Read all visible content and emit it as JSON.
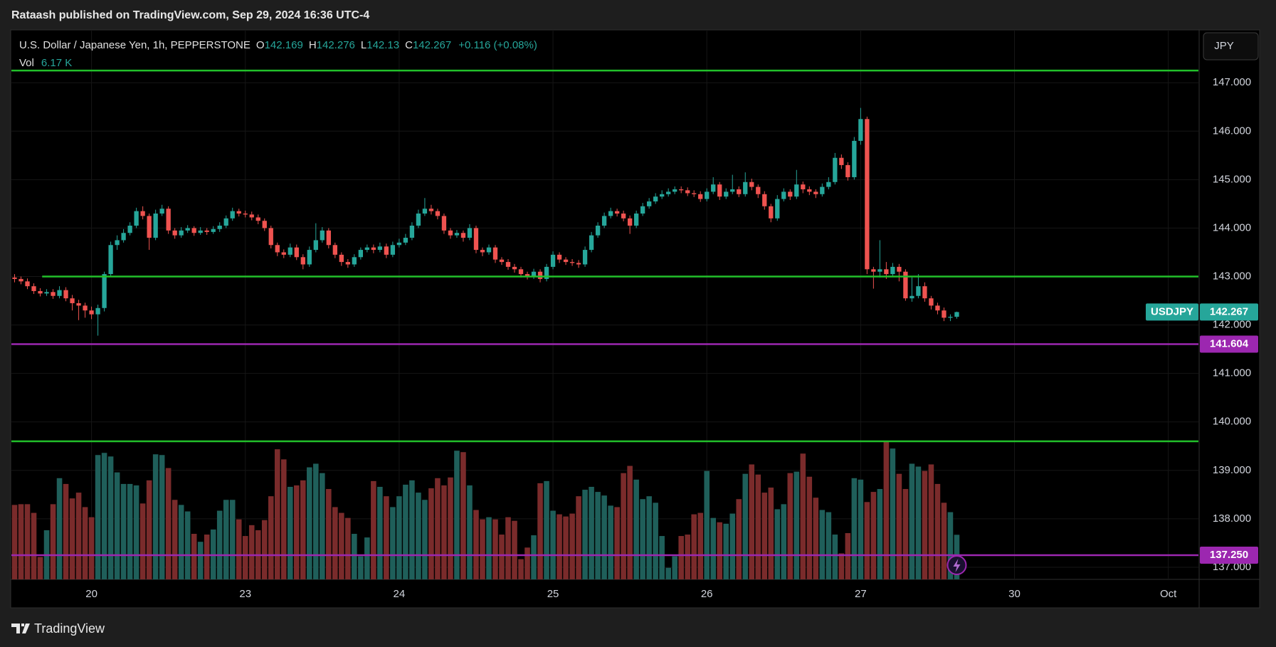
{
  "header": {
    "published": "Rataash published on TradingView.com, Sep 29, 2024 16:36 UTC-4",
    "currency_button": "JPY"
  },
  "chart_data": {
    "type": "candlestick",
    "symbol_title": "U.S. Dollar / Japanese Yen, 1h, PEPPERSTONE",
    "symbol": "USDJPY",
    "ohlc_letters": [
      "O",
      "H",
      "L",
      "C"
    ],
    "change_label": "+0.116 (+0.08%)",
    "volume_title": "Vol",
    "volume_value_label": "6.17 K",
    "open": [
      142.98,
      142.95,
      142.9,
      142.8,
      142.7,
      142.65,
      142.68,
      142.6,
      142.72,
      142.55,
      142.45,
      142.4,
      142.3,
      142.22,
      142.35,
      143.05,
      143.65,
      143.75,
      143.9,
      144.05,
      144.35,
      144.25,
      143.8,
      144.3,
      144.4,
      143.95,
      143.85,
      143.95,
      144.0,
      143.9,
      143.95,
      143.92,
      143.98,
      144.05,
      144.2,
      144.35,
      144.3,
      144.28,
      144.22,
      144.15,
      144.0,
      143.65,
      143.5,
      143.45,
      143.6,
      143.4,
      143.25,
      143.55,
      143.75,
      143.95,
      143.65,
      143.45,
      143.3,
      143.25,
      143.4,
      143.55,
      143.6,
      143.55,
      143.62,
      143.45,
      143.65,
      143.7,
      143.8,
      144.05,
      144.3,
      144.4,
      144.35,
      144.25,
      143.95,
      143.85,
      143.9,
      143.8,
      144.0,
      143.55,
      143.5,
      143.6,
      143.35,
      143.3,
      143.2,
      143.15,
      143.05,
      143.0,
      143.1,
      142.95,
      143.2,
      143.45,
      143.35,
      143.3,
      143.28,
      143.25,
      143.55,
      143.85,
      144.05,
      144.25,
      144.35,
      144.3,
      144.2,
      144.05,
      144.3,
      144.45,
      144.55,
      144.65,
      144.7,
      144.75,
      144.8,
      144.78,
      144.72,
      144.7,
      144.6,
      144.75,
      144.9,
      144.65,
      144.75,
      144.8,
      144.7,
      144.95,
      144.85,
      144.7,
      144.45,
      144.2,
      144.6,
      144.75,
      144.65,
      144.9,
      144.8,
      144.75,
      144.7,
      144.85,
      144.95,
      145.45,
      145.3,
      145.05,
      145.8,
      146.25,
      143.15,
      143.1,
      143.15,
      143.05,
      143.2,
      143.1,
      142.55,
      142.6,
      142.8,
      142.55,
      142.4,
      142.3,
      142.15,
      142.169
    ],
    "high": [
      143.05,
      143.0,
      142.96,
      142.86,
      142.76,
      142.74,
      142.74,
      142.8,
      142.78,
      142.62,
      142.52,
      142.46,
      142.38,
      142.42,
      143.1,
      143.72,
      143.85,
      143.98,
      144.12,
      144.42,
      144.45,
      144.3,
      144.38,
      144.48,
      144.45,
      144.0,
      144.02,
      144.06,
      144.04,
      144.02,
      144.0,
      144.04,
      144.12,
      144.26,
      144.42,
      144.4,
      144.36,
      144.34,
      144.28,
      144.2,
      144.05,
      143.7,
      143.56,
      143.68,
      143.66,
      143.46,
      143.62,
      144.1,
      144.02,
      144.0,
      143.7,
      143.5,
      143.36,
      143.46,
      143.6,
      143.66,
      143.66,
      143.7,
      143.68,
      143.72,
      143.78,
      143.88,
      144.12,
      144.38,
      144.62,
      144.48,
      144.4,
      144.3,
      144.0,
      143.96,
      143.95,
      144.08,
      144.05,
      143.6,
      143.66,
      143.65,
      143.4,
      143.36,
      143.26,
      143.2,
      143.1,
      143.16,
      143.15,
      143.26,
      143.52,
      143.5,
      143.4,
      143.36,
      143.34,
      143.62,
      143.92,
      144.12,
      144.32,
      144.42,
      144.4,
      144.36,
      144.26,
      144.36,
      144.52,
      144.62,
      144.72,
      144.78,
      144.82,
      144.86,
      144.86,
      144.84,
      144.78,
      144.76,
      144.82,
      145.05,
      144.95,
      144.82,
      145.1,
      144.86,
      145.15,
      145.02,
      144.9,
      144.76,
      144.5,
      144.68,
      144.82,
      144.8,
      145.2,
      144.96,
      144.86,
      144.8,
      144.92,
      145.05,
      145.55,
      145.52,
      145.36,
      145.88,
      146.48,
      146.3,
      143.2,
      143.75,
      143.3,
      143.28,
      143.26,
      143.15,
      142.98,
      143.05,
      142.88,
      142.6,
      142.46,
      142.36,
      142.22,
      142.276
    ],
    "low": [
      142.88,
      142.84,
      142.74,
      142.64,
      142.59,
      142.6,
      142.54,
      142.55,
      142.49,
      142.3,
      142.1,
      142.15,
      142.12,
      141.78,
      142.28,
      143.0,
      143.55,
      143.7,
      143.85,
      144.0,
      144.18,
      143.55,
      143.75,
      144.25,
      143.88,
      143.78,
      143.8,
      143.9,
      143.84,
      143.86,
      143.86,
      143.88,
      143.92,
      144.0,
      144.15,
      144.24,
      144.22,
      144.16,
      144.08,
      143.94,
      143.58,
      143.42,
      143.38,
      143.4,
      143.34,
      143.15,
      143.2,
      143.5,
      143.7,
      143.58,
      143.38,
      143.22,
      143.18,
      143.2,
      143.35,
      143.5,
      143.48,
      143.5,
      143.38,
      143.4,
      143.6,
      143.65,
      143.75,
      144.0,
      144.25,
      144.28,
      144.18,
      143.88,
      143.78,
      143.8,
      143.72,
      143.75,
      143.48,
      143.42,
      143.45,
      143.28,
      143.24,
      143.14,
      143.08,
      142.98,
      142.94,
      142.95,
      142.88,
      142.9,
      143.15,
      143.28,
      143.24,
      143.22,
      143.18,
      143.2,
      143.5,
      143.8,
      144.0,
      144.2,
      144.24,
      144.14,
      143.88,
      144.0,
      144.25,
      144.4,
      144.5,
      144.6,
      144.65,
      144.7,
      144.72,
      144.66,
      144.64,
      144.54,
      144.55,
      144.7,
      144.58,
      144.6,
      144.7,
      144.64,
      144.65,
      144.78,
      144.62,
      144.38,
      144.12,
      144.15,
      144.55,
      144.58,
      144.6,
      144.72,
      144.68,
      144.62,
      144.65,
      144.8,
      144.9,
      145.22,
      144.98,
      145.0,
      145.72,
      143.05,
      142.75,
      142.98,
      142.95,
      143.0,
      142.9,
      142.5,
      142.48,
      142.55,
      142.48,
      142.32,
      142.22,
      142.08,
      142.08,
      142.13
    ],
    "close": [
      142.95,
      142.9,
      142.8,
      142.7,
      142.65,
      142.68,
      142.6,
      142.72,
      142.55,
      142.45,
      142.4,
      142.3,
      142.22,
      142.35,
      143.05,
      143.65,
      143.75,
      143.9,
      144.05,
      144.35,
      144.25,
      143.8,
      144.3,
      144.4,
      143.95,
      143.85,
      143.95,
      144.0,
      143.9,
      143.95,
      143.92,
      143.98,
      144.05,
      144.2,
      144.35,
      144.3,
      144.28,
      144.22,
      144.15,
      144.0,
      143.65,
      143.5,
      143.45,
      143.6,
      143.4,
      143.25,
      143.55,
      143.75,
      143.95,
      143.65,
      143.45,
      143.3,
      143.25,
      143.4,
      143.55,
      143.6,
      143.55,
      143.62,
      143.45,
      143.65,
      143.7,
      143.8,
      144.05,
      144.3,
      144.4,
      144.35,
      144.25,
      143.95,
      143.85,
      143.9,
      143.8,
      144.0,
      143.55,
      143.5,
      143.6,
      143.35,
      143.3,
      143.2,
      143.15,
      143.05,
      143.0,
      143.1,
      142.95,
      143.2,
      143.45,
      143.35,
      143.3,
      143.28,
      143.25,
      143.55,
      143.85,
      144.05,
      144.25,
      144.35,
      144.3,
      144.2,
      144.05,
      144.3,
      144.45,
      144.55,
      144.65,
      144.7,
      144.75,
      144.8,
      144.78,
      144.72,
      144.7,
      144.6,
      144.75,
      144.9,
      144.65,
      144.75,
      144.8,
      144.7,
      144.95,
      144.85,
      144.7,
      144.45,
      144.2,
      144.6,
      144.75,
      144.65,
      144.9,
      144.8,
      144.75,
      144.7,
      144.85,
      144.95,
      145.45,
      145.3,
      145.05,
      145.8,
      146.25,
      143.15,
      143.1,
      143.15,
      143.05,
      143.2,
      143.1,
      142.55,
      142.6,
      142.8,
      142.55,
      142.4,
      142.3,
      142.15,
      142.169,
      142.267
    ],
    "volume": [
      10300,
      10400,
      10400,
      9200,
      3100,
      6800,
      10400,
      14000,
      13200,
      11200,
      12000,
      10000,
      8600,
      17200,
      17500,
      17000,
      14800,
      13200,
      13200,
      13000,
      10500,
      13700,
      17300,
      17200,
      15400,
      11000,
      10300,
      9400,
      6300,
      5200,
      6200,
      6900,
      9500,
      11000,
      11000,
      8300,
      6000,
      7500,
      6800,
      8200,
      11500,
      18000,
      16600,
      12800,
      13000,
      13700,
      15500,
      16000,
      14700,
      12500,
      10000,
      9200,
      8500,
      6300,
      3200,
      5800,
      13600,
      12800,
      11500,
      10000,
      11500,
      13100,
      13700,
      12000,
      11000,
      12600,
      14000,
      13000,
      14100,
      17800,
      17600,
      13000,
      9600,
      8300,
      8600,
      8300,
      6200,
      8600,
      8100,
      2800,
      4400,
      6100,
      13300,
      13600,
      9500,
      9000,
      8700,
      9100,
      11500,
      12400,
      12800,
      12100,
      11600,
      10200,
      10000,
      14700,
      15700,
      13800,
      11100,
      11500,
      10600,
      6000,
      1600,
      3200,
      6000,
      6200,
      9000,
      9200,
      15000,
      8500,
      7900,
      7700,
      9100,
      11100,
      14600,
      15900,
      14500,
      12000,
      12700,
      9700,
      10400,
      14700,
      14900,
      17400,
      14200,
      11300,
      9600,
      9300,
      6200,
      3600,
      6400,
      14000,
      13800,
      10700,
      12100,
      12500,
      19000,
      18100,
      14600,
      12500,
      16000,
      15600,
      15000,
      15900,
      13200,
      10600,
      9300,
      6170
    ],
    "up_color": "#26a69a",
    "down_color": "#ef5350",
    "volume_up_color": "#1f5f5a",
    "volume_down_color": "#7a2b2b",
    "xlim": [
      -0.5,
      184.7
    ],
    "xticks": [
      {
        "value": 12,
        "label": "20"
      },
      {
        "value": 36,
        "label": "23"
      },
      {
        "value": 60,
        "label": "24"
      },
      {
        "value": 84,
        "label": "25"
      },
      {
        "value": 108,
        "label": "26"
      },
      {
        "value": 132,
        "label": "27"
      },
      {
        "value": 156,
        "label": "30"
      },
      {
        "value": 180,
        "label": "Oct"
      }
    ],
    "ylim": [
      136.75,
      148.09
    ],
    "yticks": [
      {
        "value": 137,
        "label": "137.000"
      },
      {
        "value": 138,
        "label": "138.000"
      },
      {
        "value": 139,
        "label": "139.000"
      },
      {
        "value": 140,
        "label": "140.000"
      },
      {
        "value": 141,
        "label": "141.000"
      },
      {
        "value": 142,
        "label": "142.000"
      },
      {
        "value": 143,
        "label": "143.000"
      },
      {
        "value": 144,
        "label": "144.000"
      },
      {
        "value": 145,
        "label": "145.000"
      },
      {
        "value": 146,
        "label": "146.000"
      },
      {
        "value": 147,
        "label": "147.000"
      }
    ],
    "volume_ylim": [
      0,
      76000
    ],
    "hlines": [
      {
        "value": 147.25,
        "color": "#22c02a"
      },
      {
        "value": 143.0,
        "color": "#22c02a",
        "x_start": 4.3
      },
      {
        "value": 141.604,
        "color": "#9c27b0",
        "axis_label": true
      },
      {
        "value": 139.6,
        "color": "#22c02a"
      },
      {
        "value": 137.25,
        "label": "137.250",
        "color": "#9c27b0"
      }
    ],
    "grid": true
  },
  "footer": {
    "brand": "TradingView"
  }
}
